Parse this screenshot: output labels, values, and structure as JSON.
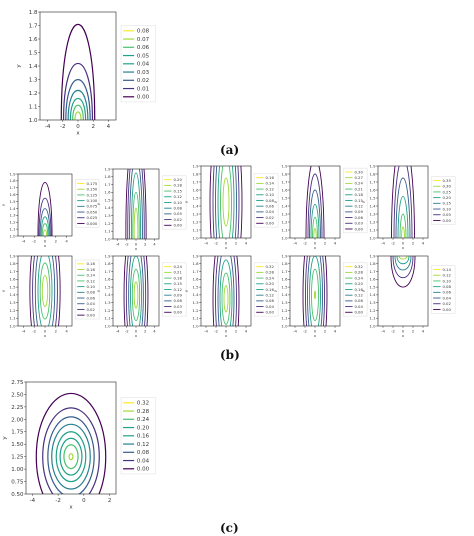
{
  "labels": {
    "a": "(a)",
    "b": "(b)",
    "c": "(c)"
  },
  "colors": {
    "viridis": [
      "#440154",
      "#46327e",
      "#365c8d",
      "#277f8e",
      "#1fa187",
      "#4ac16d",
      "#a0da39",
      "#fde725"
    ]
  },
  "chart_data": [
    {
      "id": "a",
      "type": "contour",
      "xlabel": "x",
      "ylabel": "y",
      "xlim": [
        -5,
        5
      ],
      "ylim": [
        1.0,
        1.8
      ],
      "xticks": [
        "-4",
        "-2",
        "0",
        "2",
        "4"
      ],
      "yticks": [
        "1.0",
        "1.1",
        "1.2",
        "1.3",
        "1.4",
        "1.5",
        "1.6",
        "1.7",
        "1.8"
      ],
      "levels": [
        "0.08",
        "0.07",
        "0.06",
        "0.05",
        "0.04",
        "0.03",
        "0.02",
        "0.01",
        "0.00"
      ],
      "shape": "arch",
      "center_x": 0,
      "base_y": 1.0,
      "contours": [
        {
          "half_width": 2.2,
          "top": 1.71
        },
        {
          "half_width": 1.9,
          "top": 1.42
        },
        {
          "half_width": 1.6,
          "top": 1.3
        },
        {
          "half_width": 1.3,
          "top": 1.22
        },
        {
          "half_width": 1.0,
          "top": 1.16
        },
        {
          "half_width": 0.7,
          "top": 1.11
        },
        {
          "half_width": 0.4,
          "top": 1.06
        }
      ]
    },
    {
      "id": "b1",
      "type": "contour",
      "xlabel": "x",
      "ylabel": "y",
      "xlim": [
        -5,
        5
      ],
      "ylim": [
        1.0,
        1.9
      ],
      "xticks": [
        "-4",
        "-2",
        "0",
        "2",
        "4"
      ],
      "yticks": [
        "1.0",
        "1.1",
        "1.2",
        "1.3",
        "1.4",
        "1.5",
        "1.6",
        "1.7",
        "1.8",
        "1.9"
      ],
      "levels": [
        "0.175",
        "0.150",
        "0.125",
        "0.100",
        "0.075",
        "0.050",
        "0.025",
        "0.000"
      ],
      "shape": "arch",
      "center_x": 0,
      "base_y": 1.0,
      "contours": [
        {
          "half_width": 1.3,
          "top": 1.78
        },
        {
          "half_width": 1.1,
          "top": 1.55
        },
        {
          "half_width": 0.9,
          "top": 1.4
        },
        {
          "half_width": 0.7,
          "top": 1.28
        },
        {
          "half_width": 0.5,
          "top": 1.18
        },
        {
          "half_width": 0.3,
          "top": 1.09
        }
      ]
    },
    {
      "id": "b2",
      "type": "contour",
      "xlabel": "x",
      "ylabel": "y",
      "xlim": [
        -5,
        5
      ],
      "ylim": [
        1.0,
        1.9
      ],
      "xticks": [
        "-4",
        "-2",
        "0",
        "2",
        "4"
      ],
      "yticks": [
        "1.0",
        "1.1",
        "1.2",
        "1.3",
        "1.4",
        "1.5",
        "1.6",
        "1.7",
        "1.8",
        "1.9"
      ],
      "levels": [
        "0.20",
        "0.18",
        "0.15",
        "0.12",
        "0.10",
        "0.08",
        "0.05",
        "0.02",
        "0.00"
      ],
      "shape": "ellipse",
      "center_x": 0,
      "center_y": 1.1,
      "contours": [
        {
          "rx": 2.2,
          "ry": 1.3
        },
        {
          "rx": 1.8,
          "ry": 1.15
        },
        {
          "rx": 1.4,
          "ry": 0.95
        },
        {
          "rx": 1.0,
          "ry": 0.75
        },
        {
          "rx": 0.7,
          "ry": 0.5
        },
        {
          "rx": 0.4,
          "ry": 0.3
        }
      ]
    },
    {
      "id": "b3",
      "type": "contour",
      "xlabel": "x",
      "ylabel": "y",
      "xlim": [
        -5,
        5
      ],
      "ylim": [
        1.0,
        1.9
      ],
      "xticks": [
        "-4",
        "-2",
        "0",
        "2",
        "4"
      ],
      "yticks": [
        "1.0",
        "1.1",
        "1.2",
        "1.3",
        "1.4",
        "1.5",
        "1.6",
        "1.7",
        "1.8",
        "1.9"
      ],
      "levels": [
        "0.16",
        "0.14",
        "0.12",
        "0.10",
        "0.08",
        "0.06",
        "0.04",
        "0.02",
        "0.00"
      ],
      "shape": "ellipse",
      "center_x": 0,
      "center_y": 1.45,
      "contours": [
        {
          "rx": 3.2,
          "ry": 1.2
        },
        {
          "rx": 2.6,
          "ry": 1.1
        },
        {
          "rx": 2.1,
          "ry": 0.95
        },
        {
          "rx": 1.6,
          "ry": 0.75
        },
        {
          "rx": 1.1,
          "ry": 0.55
        },
        {
          "rx": 0.6,
          "ry": 0.3
        }
      ]
    },
    {
      "id": "b4",
      "type": "contour",
      "xlabel": "x",
      "ylabel": "y",
      "xlim": [
        -5,
        5
      ],
      "ylim": [
        1.0,
        1.9
      ],
      "xticks": [
        "-4",
        "-2",
        "0",
        "2",
        "4"
      ],
      "yticks": [
        "1.0",
        "1.1",
        "1.2",
        "1.3",
        "1.4",
        "1.5",
        "1.6",
        "1.7",
        "1.8",
        "1.9"
      ],
      "levels": [
        "0.30",
        "0.27",
        "0.24",
        "0.21",
        "0.18",
        "0.15",
        "0.12",
        "0.09",
        "0.06",
        "0.03",
        "0.00"
      ],
      "shape": "ellipse",
      "center_x": 0,
      "center_y": 1.0,
      "contours": [
        {
          "rx": 1.8,
          "ry": 1.0
        },
        {
          "rx": 1.4,
          "ry": 0.8
        },
        {
          "rx": 1.1,
          "ry": 0.6
        },
        {
          "rx": 0.8,
          "ry": 0.42
        },
        {
          "rx": 0.5,
          "ry": 0.26
        },
        {
          "rx": 0.25,
          "ry": 0.12
        }
      ]
    },
    {
      "id": "b5",
      "type": "contour",
      "xlabel": "x",
      "ylabel": "y",
      "xlim": [
        -5,
        5
      ],
      "ylim": [
        1.0,
        1.9
      ],
      "xticks": [
        "-4",
        "-2",
        "0",
        "2",
        "4"
      ],
      "yticks": [
        "1.0",
        "1.1",
        "1.2",
        "1.3",
        "1.4",
        "1.5",
        "1.6",
        "1.7",
        "1.8",
        "1.9"
      ],
      "levels": [
        "0.35",
        "0.30",
        "0.25",
        "0.20",
        "0.15",
        "0.10",
        "0.05",
        "0.00"
      ],
      "shape": "ellipse",
      "center_x": 0,
      "center_y": 1.0,
      "contours": [
        {
          "rx": 2.3,
          "ry": 1.25
        },
        {
          "rx": 1.8,
          "ry": 1.0
        },
        {
          "rx": 1.4,
          "ry": 0.75
        },
        {
          "rx": 1.0,
          "ry": 0.52
        },
        {
          "rx": 0.6,
          "ry": 0.3
        },
        {
          "rx": 0.3,
          "ry": 0.14
        }
      ]
    },
    {
      "id": "b6",
      "type": "contour",
      "xlabel": "x",
      "ylabel": "y",
      "xlim": [
        -5,
        5
      ],
      "ylim": [
        1.0,
        1.9
      ],
      "xticks": [
        "-4",
        "-2",
        "0",
        "2",
        "4"
      ],
      "yticks": [
        "1.0",
        "1.1",
        "1.2",
        "1.3",
        "1.4",
        "1.5",
        "1.6",
        "1.7",
        "1.8",
        "1.9"
      ],
      "levels": [
        "0.18",
        "0.16",
        "0.14",
        "0.12",
        "0.10",
        "0.08",
        "0.06",
        "0.04",
        "0.02",
        "0.00"
      ],
      "shape": "ellipse",
      "center_x": 0,
      "center_y": 1.45,
      "contours": [
        {
          "rx": 2.8,
          "ry": 1.0
        },
        {
          "rx": 2.3,
          "ry": 0.85
        },
        {
          "rx": 1.8,
          "ry": 0.7
        },
        {
          "rx": 1.3,
          "ry": 0.52
        },
        {
          "rx": 0.9,
          "ry": 0.36
        },
        {
          "rx": 0.5,
          "ry": 0.2
        }
      ]
    },
    {
      "id": "b7",
      "type": "contour",
      "xlabel": "x",
      "ylabel": "y",
      "xlim": [
        -5,
        5
      ],
      "ylim": [
        1.0,
        1.9
      ],
      "xticks": [
        "-4",
        "-2",
        "0",
        "2",
        "4"
      ],
      "yticks": [
        "1.0",
        "1.1",
        "1.2",
        "1.3",
        "1.4",
        "1.5",
        "1.6",
        "1.7",
        "1.8",
        "1.9"
      ],
      "levels": [
        "0.24",
        "0.21",
        "0.18",
        "0.15",
        "0.12",
        "0.09",
        "0.06",
        "0.03",
        "0.00"
      ],
      "shape": "ellipse",
      "center_x": 0,
      "center_y": 1.4,
      "contours": [
        {
          "rx": 2.6,
          "ry": 1.0
        },
        {
          "rx": 2.1,
          "ry": 0.85
        },
        {
          "rx": 1.6,
          "ry": 0.68
        },
        {
          "rx": 1.2,
          "ry": 0.5
        },
        {
          "rx": 0.8,
          "ry": 0.33
        },
        {
          "rx": 0.4,
          "ry": 0.17
        }
      ]
    },
    {
      "id": "b8",
      "type": "contour",
      "xlabel": "x",
      "ylabel": "y",
      "xlim": [
        -5,
        5
      ],
      "ylim": [
        1.0,
        1.9
      ],
      "xticks": [
        "-4",
        "-2",
        "0",
        "2",
        "4"
      ],
      "yticks": [
        "1.0",
        "1.1",
        "1.2",
        "1.3",
        "1.4",
        "1.5",
        "1.6",
        "1.7",
        "1.8",
        "1.9"
      ],
      "levels": [
        "0.32",
        "0.28",
        "0.24",
        "0.20",
        "0.16",
        "0.12",
        "0.08",
        "0.04",
        "0.00"
      ],
      "shape": "ellipse",
      "center_x": 0,
      "center_y": 1.35,
      "contours": [
        {
          "rx": 2.6,
          "ry": 1.0
        },
        {
          "rx": 2.1,
          "ry": 0.85
        },
        {
          "rx": 1.6,
          "ry": 0.68
        },
        {
          "rx": 1.2,
          "ry": 0.5
        },
        {
          "rx": 0.8,
          "ry": 0.33
        },
        {
          "rx": 0.4,
          "ry": 0.17
        }
      ]
    },
    {
      "id": "b9",
      "type": "contour",
      "xlabel": "x",
      "ylabel": "y",
      "xlim": [
        -5,
        5
      ],
      "ylim": [
        1.0,
        1.9
      ],
      "xticks": [
        "-4",
        "-2",
        "0",
        "2",
        "4"
      ],
      "yticks": [
        "1.0",
        "1.1",
        "1.2",
        "1.3",
        "1.4",
        "1.5",
        "1.6",
        "1.7",
        "1.8",
        "1.9"
      ],
      "levels": [
        "0.32",
        "0.28",
        "0.24",
        "0.20",
        "0.16",
        "0.12",
        "0.08",
        "0.04",
        "0.00"
      ],
      "shape": "ellipse",
      "center_x": 0,
      "center_y": 1.4,
      "contours": [
        {
          "rx": 2.4,
          "ry": 1.0
        },
        {
          "rx": 1.9,
          "ry": 0.85
        },
        {
          "rx": 1.5,
          "ry": 0.68
        },
        {
          "rx": 1.1,
          "ry": 0.5
        },
        {
          "rx": 0.7,
          "ry": 0.33
        },
        {
          "rx": 0.1,
          "ry": 0.05
        }
      ]
    },
    {
      "id": "b10",
      "type": "contour",
      "xlabel": "x",
      "ylabel": "y",
      "xlim": [
        -5,
        5
      ],
      "ylim": [
        1.0,
        1.9
      ],
      "xticks": [
        "-4",
        "-2",
        "0",
        "2",
        "4"
      ],
      "yticks": [
        "1.0",
        "1.1",
        "1.2",
        "1.3",
        "1.4",
        "1.5",
        "1.6",
        "1.7",
        "1.8",
        "1.9"
      ],
      "levels": [
        "0.14",
        "0.12",
        "0.10",
        "0.08",
        "0.06",
        "0.04",
        "0.02",
        "0.00"
      ],
      "shape": "hang",
      "center_x": 0,
      "top_y": 1.9,
      "contours": [
        {
          "half_width": 2.4,
          "bottom": 1.5
        },
        {
          "half_width": 2.0,
          "bottom": 1.62
        },
        {
          "half_width": 1.6,
          "bottom": 1.72
        },
        {
          "half_width": 1.2,
          "bottom": 1.8
        },
        {
          "half_width": 0.8,
          "bottom": 1.86
        }
      ]
    },
    {
      "id": "c",
      "type": "contour",
      "xlabel": "x",
      "ylabel": "y",
      "xlim": [
        -4.5,
        2.5
      ],
      "ylim": [
        0.5,
        2.75
      ],
      "xticks": [
        "-4",
        "-2",
        "0",
        "2"
      ],
      "yticks": [
        "0.50",
        "0.75",
        "1.00",
        "1.25",
        "1.50",
        "1.75",
        "2.00",
        "2.25",
        "2.50",
        "2.75"
      ],
      "levels": [
        "0.32",
        "0.28",
        "0.24",
        "0.20",
        "0.16",
        "0.12",
        "0.08",
        "0.04",
        "0.00"
      ],
      "shape": "ellipse",
      "center_x": -1.0,
      "center_y": 1.25,
      "contours": [
        {
          "rx": 2.7,
          "ry": 1.27
        },
        {
          "rx": 2.2,
          "ry": 0.98
        },
        {
          "rx": 1.8,
          "ry": 0.8
        },
        {
          "rx": 1.5,
          "ry": 0.65
        },
        {
          "rx": 1.15,
          "ry": 0.5
        },
        {
          "rx": 0.85,
          "ry": 0.37
        },
        {
          "rx": 0.55,
          "ry": 0.24
        },
        {
          "rx": 0.15,
          "ry": 0.06
        }
      ]
    }
  ]
}
